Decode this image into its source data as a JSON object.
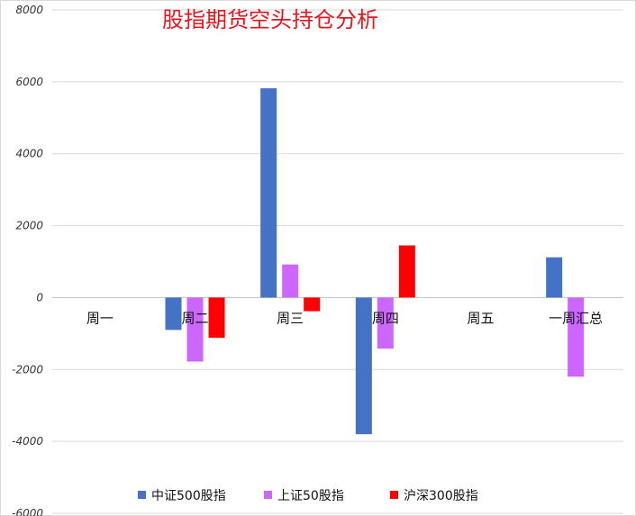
{
  "chart_data": {
    "type": "bar",
    "title": "股指期货空头持仓分析",
    "xlabel": "",
    "ylabel": "",
    "ylim": [
      -6000,
      8000
    ],
    "yticks": [
      8000,
      6000,
      4000,
      2000,
      0,
      -2000,
      -4000,
      -6000
    ],
    "categories": [
      "周一",
      "周二",
      "周三",
      "周四",
      "周五",
      "一周汇总"
    ],
    "series": [
      {
        "name": "中证500股指",
        "color": "#4472c4",
        "values": [
          0,
          -900,
          5820,
          -3800,
          0,
          1120
        ]
      },
      {
        "name": "上证50股指",
        "color": "#cc66ff",
        "values": [
          0,
          -1780,
          920,
          -1420,
          0,
          -2200
        ]
      },
      {
        "name": "沪深300股指",
        "color": "#ff0000",
        "values": [
          0,
          -1120,
          -380,
          1450,
          0,
          0
        ]
      }
    ],
    "grid": true,
    "legend_position": "bottom"
  }
}
